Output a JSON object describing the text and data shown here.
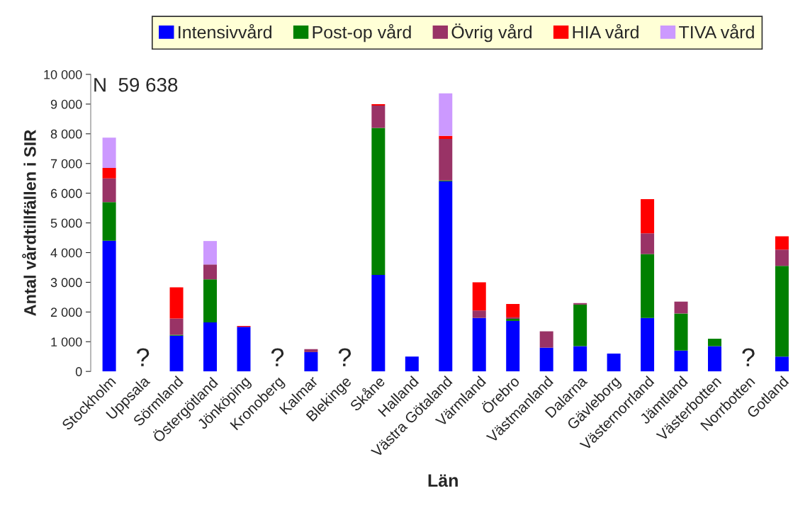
{
  "chart_data": {
    "type": "bar",
    "stacked": true,
    "xlabel": "Län",
    "ylabel": "Antal vårdtillfällen i SIR",
    "categories": [
      "Stockholm",
      "Uppsala",
      "Sörmland",
      "Östergötland",
      "Jönköping",
      "Kronoberg",
      "Kalmar",
      "Blekinge",
      "Skåne",
      "Halland",
      "Västra Götaland",
      "Värmland",
      "Örebro",
      "Västmanland",
      "Dalarna",
      "Gävleborg",
      "Västernorrland",
      "Jämtland",
      "Västerbotten",
      "Norrbotten",
      "Gotland"
    ],
    "series": [
      {
        "name": "Intensivvård",
        "color": "#0000ff",
        "values": [
          4400,
          null,
          1200,
          1650,
          1500,
          null,
          650,
          null,
          3250,
          500,
          6400,
          1800,
          1700,
          800,
          850,
          600,
          1800,
          700,
          850,
          null,
          500
        ]
      },
      {
        "name": "Post-op vård",
        "color": "#008000",
        "values": [
          1300,
          null,
          30,
          1450,
          0,
          null,
          0,
          null,
          4950,
          0,
          30,
          0,
          70,
          0,
          1400,
          0,
          2150,
          1250,
          250,
          null,
          3050
        ]
      },
      {
        "name": "Övrig vård",
        "color": "#993366",
        "values": [
          800,
          null,
          550,
          500,
          0,
          null,
          100,
          null,
          750,
          0,
          1400,
          250,
          50,
          550,
          50,
          0,
          700,
          400,
          0,
          null,
          550
        ]
      },
      {
        "name": "HIA vård",
        "color": "#ff0000",
        "values": [
          350,
          null,
          1050,
          0,
          30,
          null,
          0,
          null,
          50,
          0,
          100,
          950,
          450,
          0,
          0,
          0,
          1150,
          0,
          0,
          null,
          450
        ]
      },
      {
        "name": "TIVA vård",
        "color": "#cc99ff",
        "values": [
          1020,
          null,
          0,
          790,
          0,
          null,
          0,
          null,
          0,
          0,
          1430,
          0,
          0,
          0,
          0,
          0,
          0,
          0,
          0,
          null,
          0
        ]
      }
    ],
    "ylim": [
      0,
      10000
    ],
    "yticks": [
      0,
      {
        "value": 1000,
        "label": "1 000"
      },
      {
        "value": 2000,
        "label": "2 000"
      },
      {
        "value": 3000,
        "label": "3 000"
      },
      {
        "value": 4000,
        "label": "4 000"
      },
      {
        "value": 5000,
        "label": "5 000"
      },
      {
        "value": 6000,
        "label": "6 000"
      },
      {
        "value": 7000,
        "label": "7 000"
      },
      {
        "value": 8000,
        "label": "8 000"
      },
      {
        "value": 9000,
        "label": "9 000"
      },
      {
        "value": 10000,
        "label": "10 000"
      }
    ],
    "annotations": [
      "N  59 638",
      "?",
      "?",
      "?",
      "?"
    ],
    "legend": "top",
    "grid": false
  }
}
